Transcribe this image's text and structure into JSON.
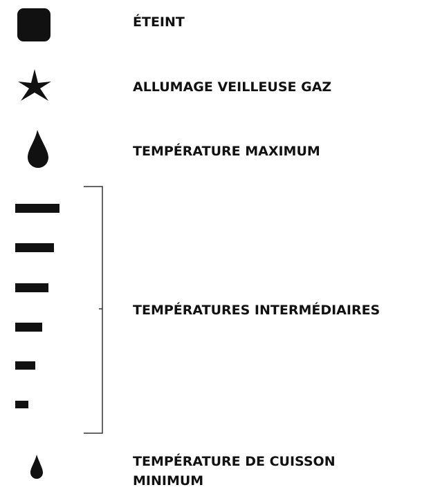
{
  "items": [
    {
      "label": "ÉTEINT"
    },
    {
      "label": "ALLUMAGE VEILLEUSE GAZ"
    },
    {
      "label": "TEMPÉRATURE MAXIMUM"
    },
    {
      "label": "TEMPÉRATURES INTERMÉDIAIRES"
    },
    {
      "label": "TEMPÉRATURE DE CUISSON MINIMUM"
    }
  ]
}
